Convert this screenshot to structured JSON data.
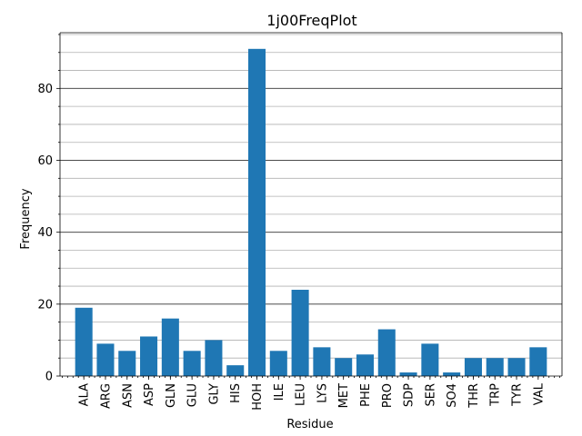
{
  "chart_data": {
    "type": "bar",
    "title": "1j00FreqPlot",
    "xlabel": "Residue",
    "ylabel": "Frequency",
    "categories": [
      "ALA",
      "ARG",
      "ASN",
      "ASP",
      "GLN",
      "GLU",
      "GLY",
      "HIS",
      "HOH",
      "ILE",
      "LEU",
      "LYS",
      "MET",
      "PHE",
      "PRO",
      "SDP",
      "SER",
      "SO4",
      "THR",
      "TRP",
      "TYR",
      "VAL"
    ],
    "values": [
      19,
      9,
      7,
      11,
      16,
      7,
      10,
      3,
      91,
      7,
      24,
      8,
      5,
      6,
      13,
      1,
      9,
      1,
      5,
      5,
      5,
      8
    ],
    "ylim": [
      0,
      95.5
    ],
    "yticks": [
      0,
      20,
      40,
      60,
      80
    ],
    "major_grid": true,
    "minor_grid": true,
    "bar_color": "#1f77b4",
    "grid_major_color": "#333333",
    "grid_minor_color": "#b0b0b0"
  }
}
